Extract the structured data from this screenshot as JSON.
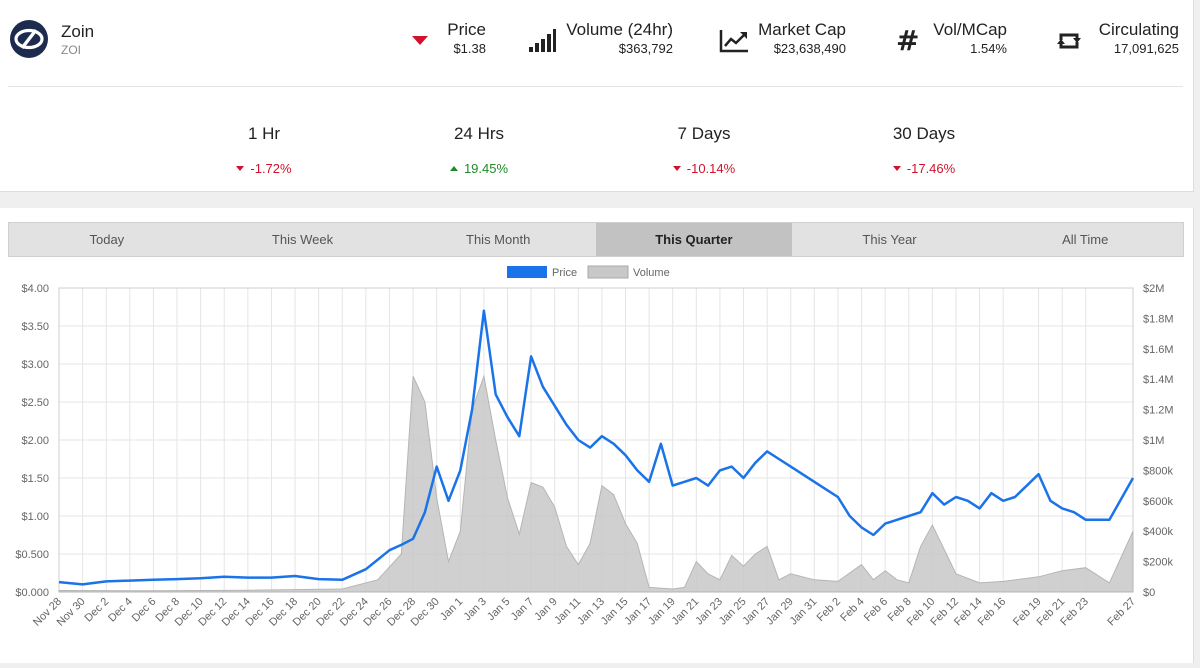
{
  "coin": {
    "name": "Zoin",
    "symbol": "ZOI"
  },
  "stats": {
    "price": {
      "label": "Price",
      "value": "$1.38"
    },
    "volume": {
      "label": "Volume (24hr)",
      "value": "$363,792"
    },
    "market_cap": {
      "label": "Market Cap",
      "value": "$23,638,490"
    },
    "vol_mcap": {
      "label": "Vol/MCap",
      "value": "1.54%"
    },
    "circulating": {
      "label": "Circulating",
      "value": "17,091,625"
    }
  },
  "changes": [
    {
      "label": "1 Hr",
      "value": "-1.72%",
      "direction": "down"
    },
    {
      "label": "24 Hrs",
      "value": "19.45%",
      "direction": "up"
    },
    {
      "label": "7 Days",
      "value": "-10.14%",
      "direction": "down"
    },
    {
      "label": "30 Days",
      "value": "-17.46%",
      "direction": "down"
    }
  ],
  "tabs": [
    "Today",
    "This Week",
    "This Month",
    "This Quarter",
    "This Year",
    "All Time"
  ],
  "active_tab": "This Quarter",
  "colors": {
    "price_line": "#1a73e8",
    "volume_fill": "#c8c8c8",
    "negative": "#d0122c",
    "positive": "#1e8a2a",
    "active_tab": "#c2c2c2"
  },
  "chart_data": {
    "type": "line",
    "legend": [
      "Price",
      "Volume"
    ],
    "legend_position": "top-center",
    "grid": true,
    "y_left": {
      "ticks": [
        "$0.000",
        "$0.500",
        "$1.00",
        "$1.50",
        "$2.00",
        "$2.50",
        "$3.00",
        "$3.50",
        "$4.00"
      ],
      "range": [
        0,
        4
      ]
    },
    "y_right": {
      "ticks": [
        "$0",
        "$200k",
        "$400k",
        "$600k",
        "$800k",
        "$1M",
        "$1.2M",
        "$1.4M",
        "$1.6M",
        "$1.8M",
        "$2M"
      ],
      "range": [
        0,
        2000000
      ]
    },
    "x_ticks": [
      "Nov 28",
      "Nov 30",
      "Dec 2",
      "Dec 4",
      "Dec 6",
      "Dec 8",
      "Dec 10",
      "Dec 12",
      "Dec 14",
      "Dec 16",
      "Dec 18",
      "Dec 20",
      "Dec 22",
      "Dec 24",
      "Dec 26",
      "Dec 28",
      "Dec 30",
      "Jan 1",
      "Jan 3",
      "Jan 5",
      "Jan 7",
      "Jan 9",
      "Jan 11",
      "Jan 13",
      "Jan 15",
      "Jan 17",
      "Jan 19",
      "Jan 21",
      "Jan 23",
      "Jan 25",
      "Jan 27",
      "Jan 29",
      "Jan 31",
      "Feb 2",
      "Feb 4",
      "Feb 6",
      "Feb 8",
      "Feb 10",
      "Feb 12",
      "Feb 14",
      "Feb 16",
      "Feb 19",
      "Feb 21",
      "Feb 23",
      "Feb 27"
    ],
    "series": [
      {
        "name": "Price",
        "x": [
          "Nov 28",
          "Nov 30",
          "Dec 2",
          "Dec 4",
          "Dec 6",
          "Dec 8",
          "Dec 10",
          "Dec 12",
          "Dec 14",
          "Dec 16",
          "Dec 18",
          "Dec 20",
          "Dec 22",
          "Dec 24",
          "Dec 26",
          "Dec 27",
          "Dec 28",
          "Dec 29",
          "Dec 30",
          "Dec 31",
          "Jan 1",
          "Jan 2",
          "Jan 3",
          "Jan 4",
          "Jan 5",
          "Jan 6",
          "Jan 7",
          "Jan 8",
          "Jan 9",
          "Jan 10",
          "Jan 11",
          "Jan 12",
          "Jan 13",
          "Jan 14",
          "Jan 15",
          "Jan 16",
          "Jan 17",
          "Jan 18",
          "Jan 19",
          "Jan 20",
          "Jan 21",
          "Jan 22",
          "Jan 23",
          "Jan 24",
          "Jan 25",
          "Jan 26",
          "Jan 27",
          "Jan 28",
          "Jan 29",
          "Jan 30",
          "Jan 31",
          "Feb 1",
          "Feb 2",
          "Feb 3",
          "Feb 4",
          "Feb 5",
          "Feb 6",
          "Feb 7",
          "Feb 8",
          "Feb 9",
          "Feb 10",
          "Feb 11",
          "Feb 12",
          "Feb 13",
          "Feb 14",
          "Feb 15",
          "Feb 16",
          "Feb 17",
          "Feb 19",
          "Feb 20",
          "Feb 21",
          "Feb 22",
          "Feb 23",
          "Feb 25",
          "Feb 27"
        ],
        "values": [
          0.13,
          0.1,
          0.14,
          0.15,
          0.16,
          0.17,
          0.18,
          0.2,
          0.19,
          0.19,
          0.21,
          0.17,
          0.16,
          0.3,
          0.55,
          0.62,
          0.7,
          1.05,
          1.65,
          1.2,
          1.6,
          2.4,
          3.7,
          2.6,
          2.3,
          2.05,
          3.1,
          2.7,
          2.45,
          2.2,
          2.0,
          1.9,
          2.05,
          1.95,
          1.8,
          1.6,
          1.45,
          1.95,
          1.4,
          1.45,
          1.5,
          1.4,
          1.6,
          1.65,
          1.5,
          1.7,
          1.85,
          1.75,
          1.65,
          1.55,
          1.45,
          1.35,
          1.25,
          1.0,
          0.85,
          0.75,
          0.9,
          0.95,
          1.0,
          1.05,
          1.3,
          1.15,
          1.25,
          1.2,
          1.1,
          1.3,
          1.2,
          1.25,
          1.55,
          1.2,
          1.1,
          1.05,
          0.95,
          0.95,
          1.5
        ]
      },
      {
        "name": "Volume",
        "x": [
          "Nov 28",
          "Dec 6",
          "Dec 14",
          "Dec 22",
          "Dec 25",
          "Dec 27",
          "Dec 28",
          "Dec 29",
          "Dec 30",
          "Dec 31",
          "Jan 1",
          "Jan 2",
          "Jan 3",
          "Jan 4",
          "Jan 5",
          "Jan 6",
          "Jan 7",
          "Jan 8",
          "Jan 9",
          "Jan 10",
          "Jan 11",
          "Jan 12",
          "Jan 13",
          "Jan 14",
          "Jan 15",
          "Jan 16",
          "Jan 17",
          "Jan 19",
          "Jan 20",
          "Jan 21",
          "Jan 22",
          "Jan 23",
          "Jan 24",
          "Jan 25",
          "Jan 26",
          "Jan 27",
          "Jan 28",
          "Jan 29",
          "Jan 31",
          "Feb 2",
          "Feb 4",
          "Feb 5",
          "Feb 6",
          "Feb 7",
          "Feb 8",
          "Feb 9",
          "Feb 10",
          "Feb 12",
          "Feb 14",
          "Feb 16",
          "Feb 19",
          "Feb 21",
          "Feb 23",
          "Feb 25",
          "Feb 27"
        ],
        "values": [
          10000,
          8000,
          12000,
          20000,
          80000,
          250000,
          1420000,
          1250000,
          620000,
          200000,
          400000,
          1200000,
          1420000,
          1000000,
          620000,
          380000,
          720000,
          690000,
          560000,
          300000,
          180000,
          320000,
          700000,
          640000,
          450000,
          320000,
          30000,
          20000,
          30000,
          200000,
          120000,
          80000,
          240000,
          170000,
          250000,
          300000,
          80000,
          120000,
          80000,
          70000,
          180000,
          80000,
          140000,
          80000,
          60000,
          300000,
          440000,
          120000,
          60000,
          70000,
          100000,
          140000,
          160000,
          60000,
          400000
        ]
      }
    ],
    "xlabel": "",
    "ylabel": ""
  }
}
